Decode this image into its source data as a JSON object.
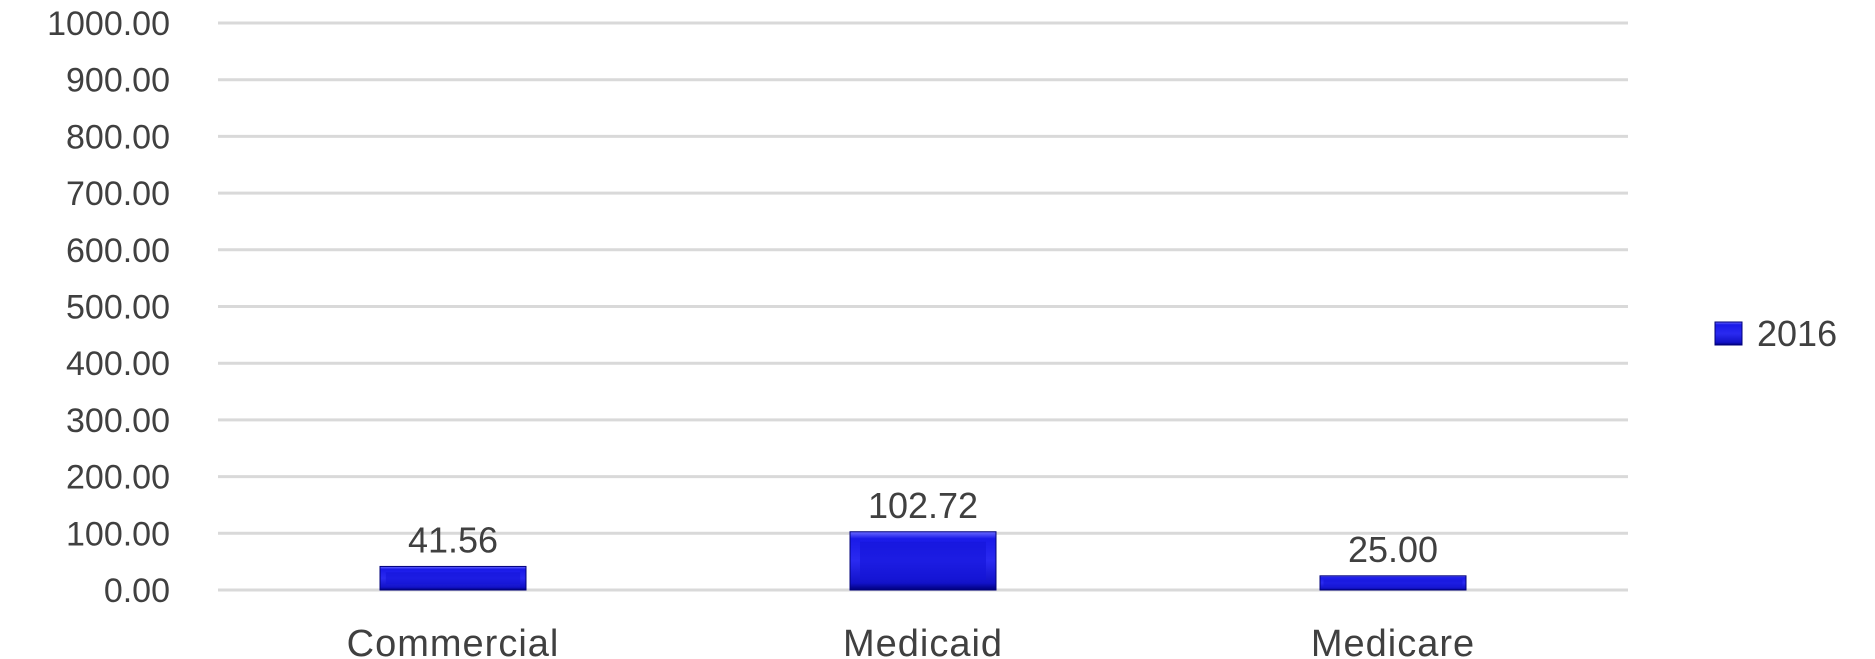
{
  "chart_data": {
    "type": "bar",
    "categories": [
      "Commercial",
      "Medicaid",
      "Medicare"
    ],
    "series": [
      {
        "name": "2016",
        "values": [
          41.56,
          102.72,
          25.0
        ],
        "data_labels": [
          "41.56",
          "102.72",
          "25.00"
        ]
      }
    ],
    "ylim": [
      0,
      1000
    ],
    "y_ticks": [
      "0.00",
      "100.00",
      "200.00",
      "300.00",
      "400.00",
      "500.00",
      "600.00",
      "700.00",
      "800.00",
      "900.00",
      "1000.00"
    ],
    "grid": true,
    "legend_position": "right",
    "colors": {
      "bar": "#1414d8",
      "bar_dark": "#00007a",
      "bar_light": "#6b6bff"
    }
  }
}
